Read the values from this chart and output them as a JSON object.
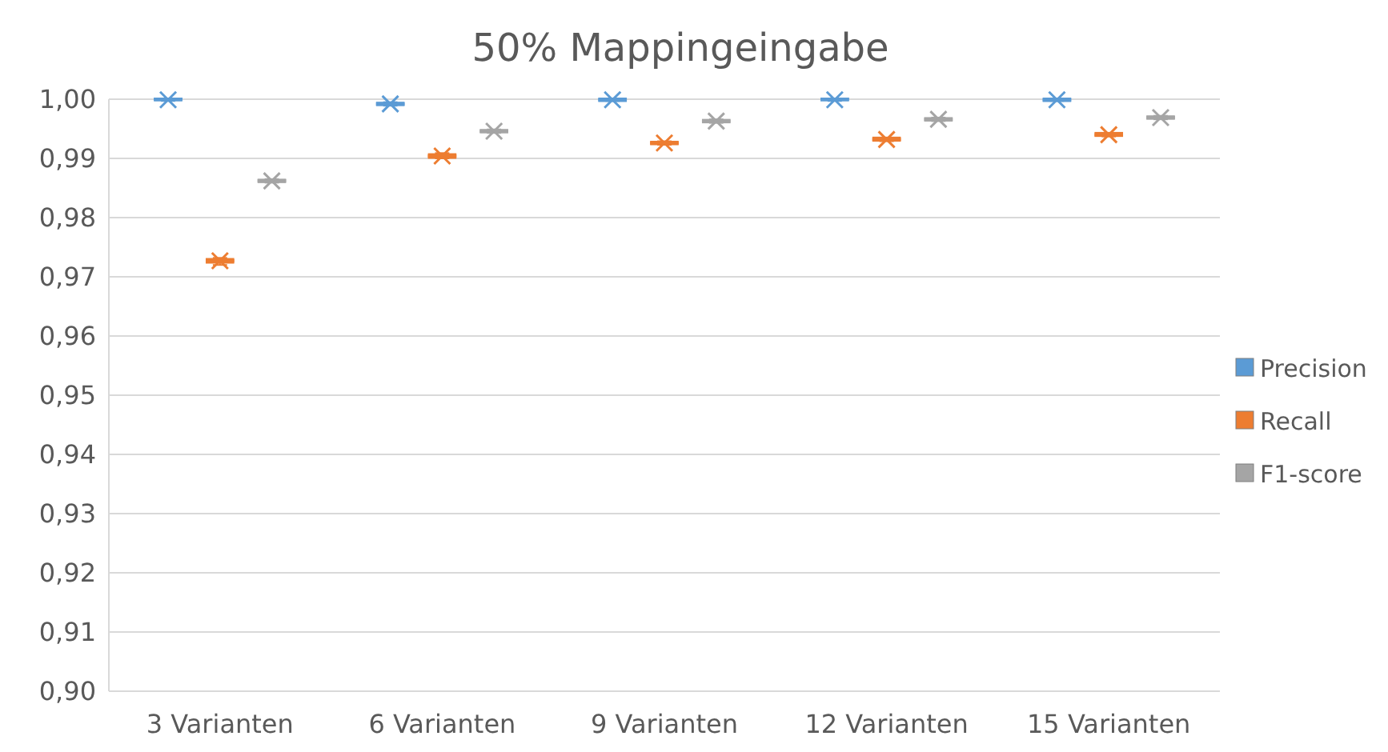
{
  "chart_data": {
    "type": "box",
    "title": "50% Mappingeingabe",
    "categories": [
      "3 Varianten",
      "6 Varianten",
      "9 Varianten",
      "12 Varianten",
      "15 Varianten"
    ],
    "series": [
      {
        "name": "Precision",
        "color": "#5b9bd5",
        "boxes": [
          {
            "low": 0.9997,
            "q1": 0.9999,
            "median": 1.0,
            "q3": 1.0,
            "high": 1.0,
            "mean": 0.9999
          },
          {
            "low": 0.9989,
            "q1": 0.9991,
            "median": 0.9992,
            "q3": 0.9993,
            "high": 0.9995,
            "mean": 0.9992
          },
          {
            "low": 0.9997,
            "q1": 0.9998,
            "median": 0.9999,
            "q3": 1.0,
            "high": 1.0,
            "mean": 0.9999
          },
          {
            "low": 0.9997,
            "q1": 0.9999,
            "median": 1.0,
            "q3": 1.0,
            "high": 1.0,
            "mean": 0.9999
          },
          {
            "low": 0.9997,
            "q1": 0.9998,
            "median": 0.9999,
            "q3": 1.0,
            "high": 1.0,
            "mean": 0.9999
          }
        ]
      },
      {
        "name": "Recall",
        "color": "#ed7d31",
        "boxes": [
          {
            "low": 0.972,
            "q1": 0.9725,
            "median": 0.9727,
            "q3": 0.9729,
            "high": 0.9732,
            "mean": 0.9727
          },
          {
            "low": 0.99,
            "q1": 0.9902,
            "median": 0.9904,
            "q3": 0.9906,
            "high": 0.9909,
            "mean": 0.9904
          },
          {
            "low": 0.9923,
            "q1": 0.9925,
            "median": 0.9926,
            "q3": 0.9927,
            "high": 0.9929,
            "mean": 0.9926
          },
          {
            "low": 0.9929,
            "q1": 0.9931,
            "median": 0.9932,
            "q3": 0.9934,
            "high": 0.9935,
            "mean": 0.9932
          },
          {
            "low": 0.9937,
            "q1": 0.9939,
            "median": 0.994,
            "q3": 0.9942,
            "high": 0.9943,
            "mean": 0.994
          }
        ]
      },
      {
        "name": "F1-score",
        "color": "#a5a5a5",
        "boxes": [
          {
            "low": 0.9859,
            "q1": 0.9861,
            "median": 0.9862,
            "q3": 0.9863,
            "high": 0.9865,
            "mean": 0.9862
          },
          {
            "low": 0.9943,
            "q1": 0.9945,
            "median": 0.9946,
            "q3": 0.9947,
            "high": 0.9949,
            "mean": 0.9946
          },
          {
            "low": 0.996,
            "q1": 0.9962,
            "median": 0.9963,
            "q3": 0.9964,
            "high": 0.9966,
            "mean": 0.9963
          },
          {
            "low": 0.9963,
            "q1": 0.9965,
            "median": 0.9966,
            "q3": 0.9967,
            "high": 0.9969,
            "mean": 0.9966
          },
          {
            "low": 0.9966,
            "q1": 0.9968,
            "median": 0.9969,
            "q3": 0.997,
            "high": 0.9972,
            "mean": 0.9969
          }
        ]
      }
    ],
    "ylim": [
      0.9,
      1.0
    ],
    "yticks": [
      {
        "value": 0.9,
        "label": "0,90"
      },
      {
        "value": 0.91,
        "label": "0,91"
      },
      {
        "value": 0.92,
        "label": "0,92"
      },
      {
        "value": 0.93,
        "label": "0,93"
      },
      {
        "value": 0.94,
        "label": "0,94"
      },
      {
        "value": 0.95,
        "label": "0,95"
      },
      {
        "value": 0.96,
        "label": "0,96"
      },
      {
        "value": 0.97,
        "label": "0,97"
      },
      {
        "value": 0.98,
        "label": "0,98"
      },
      {
        "value": 0.99,
        "label": "0,99"
      },
      {
        "value": 1.0,
        "label": "1,00"
      }
    ],
    "grid": "y",
    "legend": "right",
    "marker": "cross"
  }
}
